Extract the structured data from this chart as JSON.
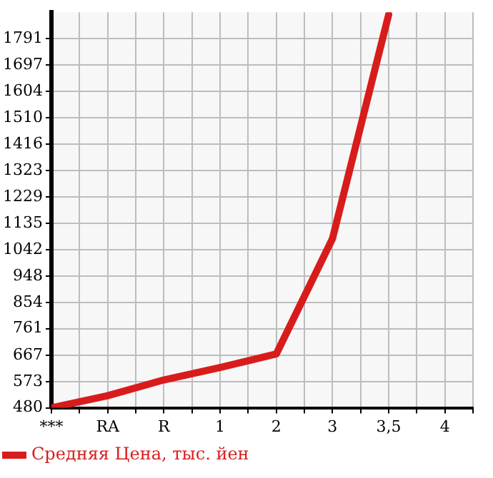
{
  "chart_data": {
    "type": "line",
    "categories": [
      "***",
      "RA",
      "R",
      "1",
      "2",
      "3",
      "3,5",
      "4"
    ],
    "series": [
      {
        "name": "Средняя Цена, тыс. йен",
        "color": "#d81c1c",
        "values": [
          480,
          523,
          579,
          623,
          671,
          1081,
          1877,
          null
        ]
      }
    ],
    "ylim": [
      480,
      1885
    ],
    "yticks": [
      480,
      573,
      667,
      761,
      854,
      948,
      1042,
      1135,
      1229,
      1323,
      1416,
      1510,
      1604,
      1697,
      1791
    ],
    "grid": true,
    "legend": "bottom left",
    "marker": "none",
    "line_style": "solid"
  }
}
